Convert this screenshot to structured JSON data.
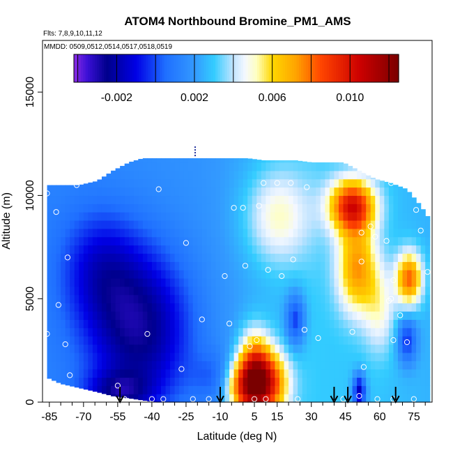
{
  "chart_data": {
    "type": "heatmap",
    "title": "ATOM4 Northbound Bromine_PM1_AMS",
    "flights_note": "Flts: 7,8,9,10,11,12",
    "dates_note": "MMDD: 0509,0512,0514,0517,0518,0519",
    "xlabel": "Latitude (deg N)",
    "ylabel": "Altitude (m)",
    "xlim": [
      -88,
      83
    ],
    "ylim": [
      0,
      17500
    ],
    "x_ticks": [
      -85,
      -70,
      -55,
      -40,
      -25,
      -10,
      5,
      15,
      30,
      45,
      60,
      75
    ],
    "x_minor_ticks": [
      -80,
      -75,
      -65,
      -60,
      -50,
      -45,
      -35,
      -30,
      -20,
      -15,
      -5,
      0,
      10,
      20,
      25,
      35,
      40,
      50,
      55,
      65,
      70,
      80
    ],
    "y_ticks": [
      0,
      5000,
      10000,
      15000
    ],
    "colorbar": {
      "labels": [
        "-0.002",
        "0.002",
        "0.006",
        "0.010"
      ],
      "label_values": [
        -0.002,
        0.002,
        0.006,
        0.01
      ],
      "range": [
        -0.0042,
        0.0125
      ],
      "dividers": [
        -0.004,
        -0.002,
        0.0,
        0.002,
        0.004,
        0.006,
        0.008,
        0.01,
        0.012
      ],
      "stops": [
        {
          "v": -0.0042,
          "c": "#8a2be2"
        },
        {
          "v": -0.0035,
          "c": "#3a0fd6"
        },
        {
          "v": -0.0025,
          "c": "#00008b"
        },
        {
          "v": -0.001,
          "c": "#0000e6"
        },
        {
          "v": 0.0005,
          "c": "#1f6fff"
        },
        {
          "v": 0.002,
          "c": "#3399ff"
        },
        {
          "v": 0.003,
          "c": "#33ccff"
        },
        {
          "v": 0.004,
          "c": "#c2e4ff"
        },
        {
          "v": 0.0046,
          "c": "#f4f8ff"
        },
        {
          "v": 0.0052,
          "c": "#ffffc0"
        },
        {
          "v": 0.006,
          "c": "#ffd700"
        },
        {
          "v": 0.0072,
          "c": "#ffa500"
        },
        {
          "v": 0.0085,
          "c": "#ff4500"
        },
        {
          "v": 0.0105,
          "c": "#cc0000"
        },
        {
          "v": 0.0125,
          "c": "#7a0000"
        }
      ]
    },
    "column_extent": {
      "lat": [
        -86,
        -80,
        -72,
        -64,
        -57,
        -50,
        -44,
        -37,
        -29,
        -22,
        -14,
        -6,
        2,
        9,
        16,
        23,
        30,
        37,
        44,
        51,
        58,
        65,
        72,
        78,
        81
      ],
      "top": [
        10500,
        10500,
        10500,
        10700,
        11200,
        11600,
        11800,
        11800,
        11800,
        11800,
        11800,
        11800,
        11800,
        11700,
        11700,
        11700,
        11600,
        11600,
        11600,
        11200,
        10800,
        10600,
        10300,
        9500,
        9000
      ],
      "bottom": [
        1200,
        900,
        700,
        500,
        300,
        200,
        100,
        0,
        0,
        0,
        0,
        0,
        0,
        0,
        0,
        0,
        0,
        0,
        0,
        0,
        0,
        0,
        0,
        0,
        0
      ]
    },
    "field_features": [
      {
        "lat": -45,
        "alt": 3500,
        "slat": 16,
        "salt": 2800,
        "amp": -0.0042
      },
      {
        "lat": -63,
        "alt": 6500,
        "slat": 12,
        "salt": 2000,
        "amp": -0.0022
      },
      {
        "lat": -55,
        "alt": 500,
        "slat": 10,
        "salt": 700,
        "amp": -0.0025
      },
      {
        "lat": -10,
        "alt": 1200,
        "slat": 8,
        "salt": 900,
        "amp": -0.0015
      },
      {
        "lat": 5,
        "alt": 1200,
        "slat": 5,
        "salt": 1400,
        "amp": 0.0075
      },
      {
        "lat": 12,
        "alt": 900,
        "slat": 6,
        "salt": 1100,
        "amp": 0.0055
      },
      {
        "lat": -2,
        "alt": 800,
        "slat": 5,
        "salt": 900,
        "amp": 0.0045
      },
      {
        "lat": 48,
        "alt": 9500,
        "slat": 7,
        "salt": 900,
        "amp": 0.007
      },
      {
        "lat": 50,
        "alt": 6500,
        "slat": 6,
        "salt": 1500,
        "amp": 0.0045
      },
      {
        "lat": 73,
        "alt": 6000,
        "slat": 4,
        "salt": 900,
        "amp": 0.0055
      },
      {
        "lat": 15,
        "alt": 9000,
        "slat": 10,
        "salt": 1600,
        "amp": 0.0025
      },
      {
        "lat": 51,
        "alt": 500,
        "slat": 2,
        "salt": 600,
        "amp": -0.0045
      },
      {
        "lat": 23,
        "alt": 4000,
        "slat": 3,
        "salt": 900,
        "amp": -0.003
      },
      {
        "lat": 72,
        "alt": 3000,
        "slat": 3,
        "salt": 800,
        "amp": -0.003
      },
      {
        "lat": 60,
        "alt": 4500,
        "slat": 5,
        "salt": 1500,
        "amp": 0.002
      }
    ],
    "field_base": [
      {
        "lat": -90,
        "v": 0.0012
      },
      {
        "lat": -20,
        "v": 0.0018
      },
      {
        "lat": 0,
        "v": 0.0022
      },
      {
        "lat": 30,
        "v": 0.003
      },
      {
        "lat": 60,
        "v": 0.0028
      },
      {
        "lat": 90,
        "v": 0.0024
      }
    ],
    "observation_points": [
      {
        "lat": -86,
        "alt": 10100
      },
      {
        "lat": -82,
        "alt": 9200
      },
      {
        "lat": -77,
        "alt": 7000
      },
      {
        "lat": -81,
        "alt": 4700
      },
      {
        "lat": -86,
        "alt": 3300
      },
      {
        "lat": -78,
        "alt": 2800
      },
      {
        "lat": -76,
        "alt": 1300
      },
      {
        "lat": -73,
        "alt": 10500
      },
      {
        "lat": -55,
        "alt": 800
      },
      {
        "lat": -52,
        "alt": 150
      },
      {
        "lat": -42,
        "alt": 3300
      },
      {
        "lat": -37,
        "alt": 10300
      },
      {
        "lat": -40,
        "alt": 150
      },
      {
        "lat": -35,
        "alt": 150
      },
      {
        "lat": -27,
        "alt": 1600
      },
      {
        "lat": -25,
        "alt": 7700
      },
      {
        "lat": -22,
        "alt": 150
      },
      {
        "lat": -18,
        "alt": 4000
      },
      {
        "lat": -15,
        "alt": 150
      },
      {
        "lat": -8,
        "alt": 6100
      },
      {
        "lat": -6,
        "alt": 3800
      },
      {
        "lat": -4,
        "alt": 9400
      },
      {
        "lat": 0,
        "alt": 9400
      },
      {
        "lat": 1,
        "alt": 6600
      },
      {
        "lat": 3,
        "alt": 2700
      },
      {
        "lat": 6,
        "alt": 3000
      },
      {
        "lat": 9,
        "alt": 10600
      },
      {
        "lat": 7,
        "alt": 9500
      },
      {
        "lat": 11,
        "alt": 6400
      },
      {
        "lat": 15,
        "alt": 10600
      },
      {
        "lat": 17,
        "alt": 6100
      },
      {
        "lat": 21,
        "alt": 10600
      },
      {
        "lat": 22,
        "alt": 6900
      },
      {
        "lat": 28,
        "alt": 10400
      },
      {
        "lat": 27,
        "alt": 3500
      },
      {
        "lat": 33,
        "alt": 3100
      },
      {
        "lat": 48,
        "alt": 3400
      },
      {
        "lat": 50,
        "alt": 11600
      },
      {
        "lat": 55,
        "alt": 11100
      },
      {
        "lat": 52,
        "alt": 8200
      },
      {
        "lat": 56,
        "alt": 8500
      },
      {
        "lat": 58,
        "alt": 8000
      },
      {
        "lat": 52,
        "alt": 6800
      },
      {
        "lat": 63,
        "alt": 7800
      },
      {
        "lat": 65,
        "alt": 10600
      },
      {
        "lat": 66,
        "alt": 5900
      },
      {
        "lat": 71,
        "alt": 10700
      },
      {
        "lat": 78,
        "alt": 8300
      },
      {
        "lat": 76,
        "alt": 9300
      },
      {
        "lat": 81,
        "alt": 6300
      },
      {
        "lat": 65,
        "alt": 5000
      },
      {
        "lat": 66,
        "alt": 3000
      },
      {
        "lat": 69,
        "alt": 4200
      },
      {
        "lat": 72,
        "alt": 2900
      },
      {
        "lat": 53,
        "alt": 1700
      },
      {
        "lat": 51,
        "alt": 300
      },
      {
        "lat": 59,
        "alt": 150
      },
      {
        "lat": 66,
        "alt": 150
      },
      {
        "lat": 75,
        "alt": 150
      },
      {
        "lat": 44,
        "alt": 150
      },
      {
        "lat": 24,
        "alt": 150
      },
      {
        "lat": 10,
        "alt": 150
      },
      {
        "lat": 5,
        "alt": 150
      },
      {
        "lat": 64,
        "alt": 4900
      }
    ],
    "arrows_lat": [
      -54,
      -10,
      40,
      46,
      67
    ],
    "marker_lat": -21,
    "marker_alt": [
      11900,
      12400
    ]
  }
}
